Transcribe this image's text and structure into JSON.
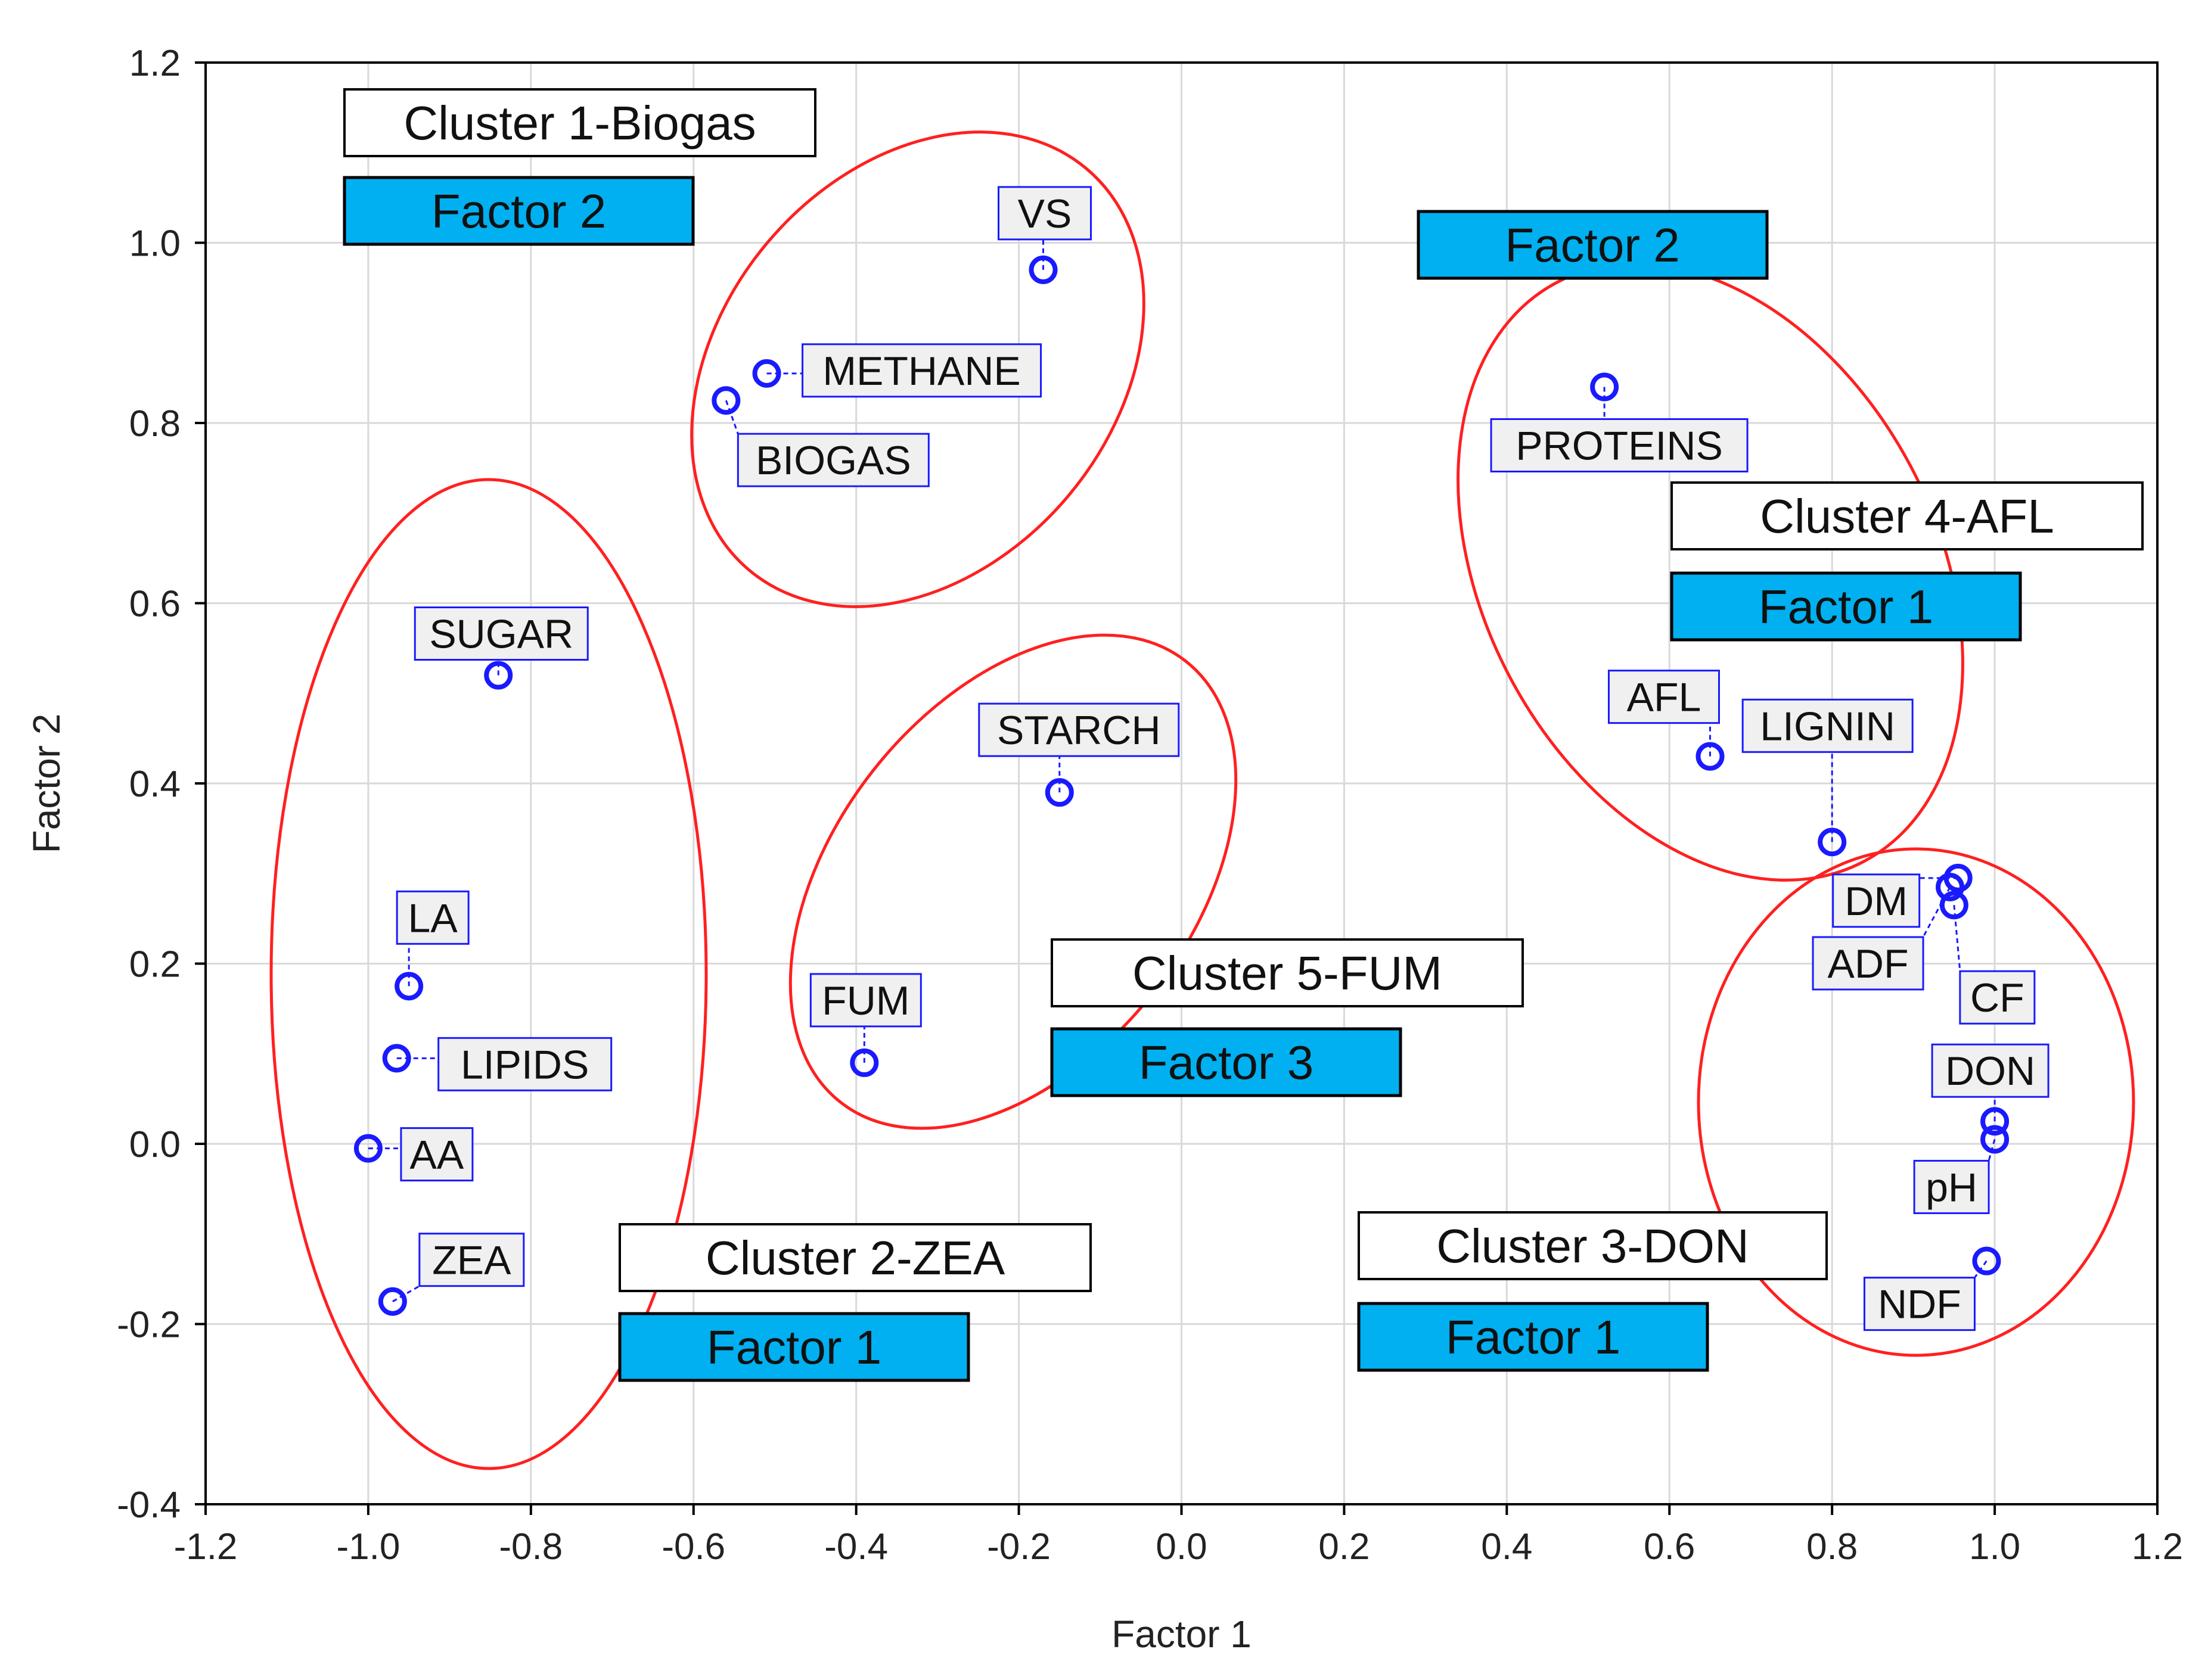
{
  "chart_data": {
    "type": "scatter",
    "title": "",
    "xlabel": "Factor 1",
    "ylabel": "Factor 2",
    "xlim": [
      -1.2,
      1.2
    ],
    "ylim": [
      -0.4,
      1.2
    ],
    "xticks": [
      -1.2,
      -1.0,
      -0.8,
      -0.6,
      -0.4,
      -0.2,
      0.0,
      0.2,
      0.4,
      0.6,
      0.8,
      1.0,
      1.2
    ],
    "yticks": [
      -0.4,
      -0.2,
      0.0,
      0.2,
      0.4,
      0.6,
      0.8,
      1.0,
      1.2
    ],
    "grid": true,
    "points": [
      {
        "label": "VS",
        "x": -0.17,
        "y": 0.97
      },
      {
        "label": "METHANE",
        "x": -0.51,
        "y": 0.855
      },
      {
        "label": "BIOGAS",
        "x": -0.56,
        "y": 0.825
      },
      {
        "label": "SUGAR",
        "x": -0.84,
        "y": 0.52
      },
      {
        "label": "LA",
        "x": -0.95,
        "y": 0.175
      },
      {
        "label": "LIPIDS",
        "x": -0.965,
        "y": 0.095
      },
      {
        "label": "AA",
        "x": -1.0,
        "y": -0.005
      },
      {
        "label": "ZEA",
        "x": -0.97,
        "y": -0.175
      },
      {
        "label": "STARCH",
        "x": -0.15,
        "y": 0.39
      },
      {
        "label": "FUM",
        "x": -0.39,
        "y": 0.09
      },
      {
        "label": "PROTEINS",
        "x": 0.52,
        "y": 0.84
      },
      {
        "label": "AFL",
        "x": 0.65,
        "y": 0.43
      },
      {
        "label": "LIGNIN",
        "x": 0.8,
        "y": 0.335
      },
      {
        "label": "DM",
        "x": 0.955,
        "y": 0.295
      },
      {
        "label": "ADF",
        "x": 0.945,
        "y": 0.285
      },
      {
        "label": "CF",
        "x": 0.95,
        "y": 0.265
      },
      {
        "label": "DON",
        "x": 1.0,
        "y": 0.025
      },
      {
        "label": "pH",
        "x": 1.0,
        "y": 0.005
      },
      {
        "label": "NDF",
        "x": 0.99,
        "y": -0.13
      }
    ],
    "clusters": [
      {
        "name": "Cluster 1-Biogas",
        "factor": "Factor 2"
      },
      {
        "name": "Cluster 2-ZEA",
        "factor": "Factor 1"
      },
      {
        "name": "Cluster 3-DON",
        "factor": "Factor 1"
      },
      {
        "name": "Cluster 4-AFL",
        "factor": "Factor 1"
      },
      {
        "name": "Cluster 5-FUM",
        "factor": "Factor 3"
      }
    ],
    "colors": {
      "point": "#1a1aff",
      "ellipse": "#ff2020",
      "factor_box": "#00b0f0",
      "grid": "#d9d9d9"
    }
  }
}
